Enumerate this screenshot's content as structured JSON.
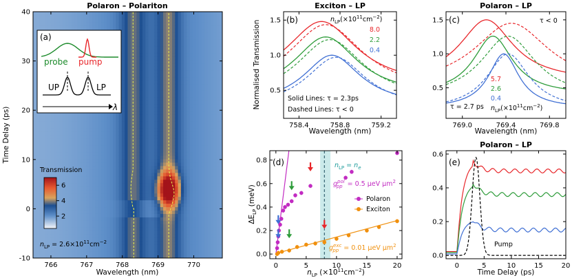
{
  "chart_data": [
    {
      "type": "heatmap",
      "panel": "(a)",
      "title": "Polaron – Polariton",
      "xlabel": "Wavelength (nm)",
      "ylabel": "Time Delay (ps)",
      "xlim": [
        765.5,
        770.8
      ],
      "ylim": [
        -10,
        40
      ],
      "xticks": [
        766,
        767,
        768,
        769,
        770
      ],
      "yticks": [
        -10,
        0,
        10,
        20,
        30,
        40
      ],
      "colorbar": {
        "label": "Transmission",
        "ticks": [
          2,
          4,
          6
        ],
        "range": [
          0.4,
          7
        ]
      },
      "annotation": "n_LP = 2.6×10^11 cm^-2",
      "inset": {
        "probe": "probe",
        "pump": "pump",
        "up": "UP",
        "lp": "LP",
        "axis": "λ"
      },
      "up_center_nm": 768.3,
      "lp_center_nm": 769.3,
      "hotspot": {
        "x_nm": 769.3,
        "t_ps": 4,
        "peak": 7
      }
    },
    {
      "type": "line",
      "panel": "(b)",
      "title": "Exciton – LP",
      "xlabel": "Wavelength (nm)",
      "ylabel": "Normalised Transmission",
      "xlim": [
        758.25,
        759.35
      ],
      "ylim": [
        0.1,
        1.62
      ],
      "xticks": [
        758.4,
        758.8,
        759.2
      ],
      "yticks": [
        0.5,
        1.0,
        1.5
      ],
      "legend_title": "n_LP(×10^11 cm^-2)",
      "legend": [
        "8.0",
        "2.2",
        "0.4"
      ],
      "colors": [
        "#e8262a",
        "#2e9c3a",
        "#3f6fd4"
      ],
      "series": [
        {
          "name": "8.0",
          "peak": 1.48,
          "center": 758.62,
          "sigma": 0.42,
          "base": 0.55
        },
        {
          "name": "2.2",
          "peak": 1.26,
          "center": 758.66,
          "sigma": 0.38,
          "base": 0.42
        },
        {
          "name": "0.4",
          "peak": 1.0,
          "center": 758.72,
          "sigma": 0.34,
          "base": 0.28
        }
      ],
      "notes": [
        "Solid Lines: τ = 2.3ps",
        "Dashed Lines: τ < 0"
      ]
    },
    {
      "type": "line",
      "panel": "(c)",
      "title": "Polaron – LP",
      "xlabel": "Wavelength (nm)",
      "xlim": [
        768.85,
        769.95
      ],
      "ylim": [
        0.05,
        1.62
      ],
      "xticks": [
        769.0,
        769.4,
        769.8
      ],
      "yticks": [
        0.5,
        1.0,
        1.5
      ],
      "legend_title": "n_LP(×10^11 cm^-2)",
      "legend": [
        "5.7",
        "2.6",
        "0.4"
      ],
      "colors": [
        "#e8262a",
        "#2e9c3a",
        "#3f6fd4"
      ],
      "series": [
        {
          "name": "5.7",
          "peak": 1.5,
          "center": 769.22,
          "sigma": 0.3,
          "base": 0.6,
          "ref_peak": 1.45,
          "ref_center": 769.45
        },
        {
          "name": "2.6",
          "peak": 1.26,
          "center": 769.28,
          "sigma": 0.22,
          "base": 0.4,
          "ref_peak": 1.26,
          "ref_center": 769.42
        },
        {
          "name": "0.4",
          "peak": 1.0,
          "center": 769.38,
          "sigma": 0.17,
          "base": 0.2,
          "ref_peak": 1.0,
          "ref_center": 769.42
        }
      ],
      "notes": [
        "τ < 0",
        "τ = 2.7 ps"
      ]
    },
    {
      "type": "scatter",
      "panel": "(d)",
      "xlabel": "n_LP (×10^11 cm^-2)",
      "ylabel": "ΔE_LP (meV)",
      "xlim": [
        -1,
        20.8
      ],
      "ylim": [
        -0.04,
        0.88
      ],
      "xticks": [
        0,
        5,
        10,
        15,
        20
      ],
      "yticks": [
        0.0,
        0.2,
        0.4,
        0.6,
        0.8
      ],
      "legend": [
        "Polaron",
        "Exciton"
      ],
      "series": [
        {
          "name": "Polaron",
          "color": "#c22cc2",
          "x": [
            0.2,
            0.3,
            0.4,
            0.5,
            0.7,
            0.9,
            1.2,
            1.5,
            2.0,
            2.6,
            3.2,
            4.2,
            5.7,
            11.5,
            12.5,
            20.0
          ],
          "y": [
            0.05,
            0.1,
            0.15,
            0.2,
            0.25,
            0.3,
            0.37,
            0.4,
            0.42,
            0.45,
            0.5,
            0.52,
            0.58,
            0.65,
            0.7,
            0.86
          ]
        },
        {
          "name": "Exciton",
          "color": "#f0900e",
          "x": [
            0.2,
            0.4,
            1.0,
            2.2,
            3.5,
            5.0,
            6.5,
            8.0,
            10.0,
            12.0,
            15.0,
            17.0,
            20.0
          ],
          "y": [
            0.0,
            0.01,
            0.02,
            0.03,
            0.06,
            0.08,
            0.09,
            0.1,
            0.13,
            0.16,
            0.2,
            0.23,
            0.28
          ]
        }
      ],
      "fits": [
        {
          "name": "polaron fit",
          "color": "#c22cc2",
          "x": [
            0,
            2.15
          ],
          "y": [
            0,
            0.88
          ]
        },
        {
          "name": "exciton fit",
          "color": "#f0900e",
          "x": [
            0,
            20
          ],
          "y": [
            0.005,
            0.285
          ]
        }
      ],
      "band": {
        "x": [
          7.3,
          9.0
        ],
        "line_x": 8.0
      },
      "annotations": [
        "n_LP = n_e",
        "g_pp^pol = 0.5 μeV μm^2",
        "g_pp^exc = 0.01 μeV μm^2"
      ],
      "arrows": [
        {
          "x": 0.4,
          "y": 0.26,
          "color": "#3f6fd4"
        },
        {
          "x": 2.6,
          "y": 0.55,
          "color": "#2e9c3a"
        },
        {
          "x": 5.7,
          "y": 0.71,
          "color": "#e8262a"
        },
        {
          "x": 0.4,
          "y": 0.14,
          "color": "#3f6fd4"
        },
        {
          "x": 2.2,
          "y": 0.14,
          "color": "#2e9c3a"
        },
        {
          "x": 8.0,
          "y": 0.22,
          "color": "#e8262a"
        }
      ]
    },
    {
      "type": "line",
      "panel": "(e)",
      "title": "Polaron – LP",
      "xlabel": "Time Delay (ps)",
      "xlim": [
        -2,
        20
      ],
      "ylim": [
        -0.02,
        0.62
      ],
      "xticks": [
        0,
        5,
        10,
        15,
        20
      ],
      "yticks": [
        0.0,
        0.2,
        0.4,
        0.6
      ],
      "series": [
        {
          "name": "red",
          "color": "#e8262a",
          "rise": 0.56,
          "level": 0.5
        },
        {
          "name": "green",
          "color": "#2e9c3a",
          "rise": 0.43,
          "level": 0.36
        },
        {
          "name": "blue",
          "color": "#3f6fd4",
          "rise": 0.21,
          "level": 0.15
        }
      ],
      "pump": {
        "label": "Pump",
        "peak": 0.58,
        "center": 3.5,
        "sigma": 1.0
      }
    }
  ],
  "labels": {
    "a_title": "Polaron – Polariton",
    "b_title": "Exciton – LP",
    "c_title": "Polaron – LP",
    "e_title": "Polaron – LP",
    "a_panel": "(a)",
    "b_panel": "(b)",
    "c_panel": "(c)",
    "d_panel": "(d)",
    "e_panel": "(e)",
    "a_xlabel": "Wavelength (nm)",
    "a_ylabel": "Time Delay (ps)",
    "b_xlabel": "Wavelength (nm)",
    "b_ylabel": "Normalised Transmission",
    "c_xlabel": "Wavelength (nm)",
    "d_xlabel_main": "n",
    "d_xlabel_sub": "LP",
    "d_xlabel_rest": " (×10",
    "d_xlabel_sup": "11",
    "d_xlabel_unit": "cm",
    "d_xlabel_unitsup": "−2",
    "d_xlabel_end": ")",
    "d_ylabel": "ΔE",
    "d_ylabel_sub": "LP",
    "d_ylabel_unit": " (meV)",
    "e_xlabel": "Time Delay (ps)",
    "colorbar_label": "Transmission",
    "a_density": "n",
    "a_density_sub": "LP",
    "a_density_rest": " = 2.6×10",
    "a_density_sup": "11",
    "a_density_unit": "cm",
    "a_density_unitsup": "−2",
    "inset_probe": "probe",
    "inset_pump": "pump",
    "inset_up": "UP",
    "inset_lp": "LP",
    "inset_lambda": "λ",
    "legend_n": "n",
    "legend_n_sub": "LP",
    "legend_n_rest": "(×10",
    "legend_n_sup": "11",
    "legend_n_unit": "cm",
    "legend_n_unitsup": "−2",
    "legend_n_end": ")",
    "b_note1": "Solid Lines: τ = 2.3ps",
    "b_note2": "Dashed Lines: τ < 0",
    "c_note1": "τ < 0",
    "c_note2": "τ = 2.7 ps",
    "d_nlp": "n",
    "d_nlp_sub": "LP",
    "d_nlp_eq": " = n",
    "d_nlp_e": "e",
    "d_gpol": "g",
    "d_gpol_sup": "pol",
    "d_gpol_sub": "pp",
    "d_gpol_val": " = 0.5 μeV μm",
    "d_gpol_sq": "2",
    "d_gexc": "g",
    "d_gexc_sup": "exc",
    "d_gexc_sub": "pp",
    "d_gexc_val": " = 0.01 μeV μm",
    "d_gexc_sq": "2",
    "legend_polaron": "Polaron",
    "legend_exciton": "Exciton",
    "e_pump": "Pump"
  }
}
